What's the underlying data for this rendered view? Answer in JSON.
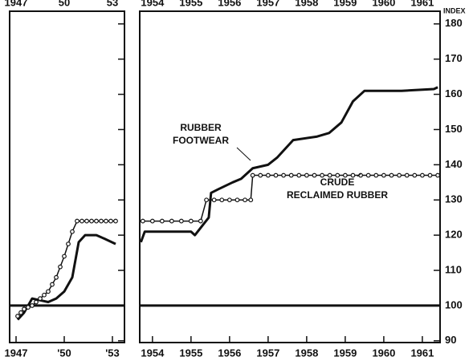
{
  "chart_data": [
    {
      "type": "line",
      "xlim": [
        1946.6,
        1953.75
      ],
      "ylim": [
        89.5,
        183.6
      ],
      "xticks": [
        1947,
        {
          "value": 1950,
          "label": "'50"
        },
        {
          "value": 1953,
          "label": "'53"
        }
      ],
      "xticks_top": [
        1947,
        {
          "value": 1950,
          "label": "50"
        },
        {
          "value": 1953,
          "label": "53"
        }
      ],
      "yticks": [
        90,
        100,
        110,
        120,
        130,
        140,
        150,
        160,
        170,
        180
      ],
      "baseline": 100,
      "series": [
        {
          "color": "#111",
          "marker": "none",
          "width": 3,
          "x": [
            1947.1,
            1947.5,
            1948,
            1948.5,
            1949,
            1949.5,
            1950,
            1950.5,
            1950.9,
            1951.3,
            1952,
            1952.5,
            1953.2
          ],
          "values": [
            96,
            98,
            102,
            101.5,
            101,
            102,
            104,
            108,
            118,
            120,
            120,
            119,
            117.5
          ]
        },
        {
          "color": "#111",
          "marker": "circle",
          "width": 1.5,
          "x": [
            1947.1,
            1947.3,
            1947.5,
            1947.75,
            1948,
            1948.25,
            1948.5,
            1948.75,
            1949,
            1949.25,
            1949.5,
            1949.75,
            1950,
            1950.25,
            1950.5,
            1950.8,
            1951.1,
            1951.4,
            1951.7,
            1952,
            1952.3,
            1952.6,
            1952.9,
            1953.2
          ],
          "values": [
            97,
            98,
            99,
            99.5,
            100,
            101,
            102,
            103,
            104,
            106,
            108,
            111,
            114,
            117.5,
            121,
            124,
            124,
            124,
            124,
            124,
            124,
            124,
            124,
            124
          ]
        }
      ]
    },
    {
      "type": "line",
      "xlim": [
        1953.67,
        1961.46
      ],
      "ylim": [
        89.5,
        183.6
      ],
      "xticks": [
        1954,
        1955,
        1956,
        1957,
        1958,
        1959,
        1960,
        1961
      ],
      "yticks": [
        90,
        100,
        110,
        120,
        130,
        140,
        150,
        160,
        170,
        180
      ],
      "ylabel": "INDEX",
      "baseline": 100,
      "annotations": [
        [
          "RUBBER",
          "FOOTWEAR"
        ],
        [
          "CRUDE",
          "RECLAIMED RUBBER"
        ]
      ],
      "series": [
        {
          "color": "#111",
          "marker": "none",
          "width": 3,
          "x": [
            1953.7,
            1953.8,
            1955.0,
            1955.1,
            1955.46,
            1955.52,
            1955.7,
            1956.08,
            1956.3,
            1956.6,
            1957.0,
            1957.23,
            1957.65,
            1958.27,
            1958.58,
            1958.9,
            1959.2,
            1959.5,
            1960.46,
            1961.3,
            1961.4
          ],
          "values": [
            118,
            121,
            121,
            120,
            125,
            132,
            133,
            135,
            136,
            139,
            140,
            142,
            147,
            148,
            149,
            152,
            158,
            161,
            161,
            161.5,
            162
          ]
        },
        {
          "color": "#111",
          "marker": "circle",
          "width": 1.5,
          "x": [
            1953.75,
            1954,
            1954.25,
            1954.5,
            1954.75,
            1955,
            1955.25,
            1955.4,
            1955.6,
            1955.8,
            1956,
            1956.2,
            1956.4,
            1956.55,
            1956.6,
            1956.8,
            1957,
            1957.2,
            1957.4,
            1957.6,
            1957.8,
            1958,
            1958.2,
            1958.4,
            1958.6,
            1958.8,
            1959,
            1959.2,
            1959.4,
            1959.6,
            1959.8,
            1960,
            1960.2,
            1960.4,
            1960.6,
            1960.8,
            1961,
            1961.2,
            1961.4
          ],
          "values": [
            124,
            124,
            124,
            124,
            124,
            124,
            124,
            130,
            130,
            130,
            130,
            130,
            130,
            130,
            137,
            137,
            137,
            137,
            137,
            137,
            137,
            137,
            137,
            137,
            137,
            137,
            137,
            137,
            137,
            137,
            137,
            137,
            137,
            137,
            137,
            137,
            137,
            137,
            137
          ]
        }
      ]
    }
  ]
}
